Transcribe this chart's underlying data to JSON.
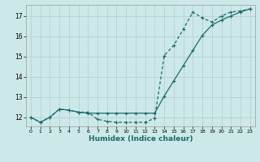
{
  "xlabel": "Humidex (Indice chaleur)",
  "ylabel": "",
  "background_color": "#cde8e8",
  "grid_color": "#b8d4d4",
  "line_color": "#1a6b6b",
  "xlim": [
    -0.5,
    23.5
  ],
  "ylim": [
    11.55,
    17.55
  ],
  "yticks": [
    12,
    13,
    14,
    15,
    16,
    17
  ],
  "xticks": [
    0,
    1,
    2,
    3,
    4,
    5,
    6,
    7,
    8,
    9,
    10,
    11,
    12,
    13,
    14,
    15,
    16,
    17,
    18,
    19,
    20,
    21,
    22,
    23
  ],
  "line1_x": [
    0,
    1,
    2,
    3,
    4,
    5,
    6,
    7,
    8,
    9,
    10,
    11,
    12,
    13,
    14,
    15,
    16,
    17,
    18,
    19,
    20,
    21,
    22,
    23
  ],
  "line1_y": [
    12.0,
    11.75,
    12.0,
    12.4,
    12.35,
    12.25,
    12.2,
    12.2,
    12.2,
    12.2,
    12.2,
    12.2,
    12.2,
    12.2,
    13.05,
    13.8,
    14.55,
    15.3,
    16.05,
    16.55,
    16.8,
    17.0,
    17.2,
    17.35
  ],
  "line2_x": [
    0,
    1,
    2,
    3,
    4,
    5,
    6,
    7,
    8,
    9,
    10,
    11,
    12,
    13,
    14,
    15,
    16,
    17,
    18,
    19,
    20,
    21,
    22,
    23
  ],
  "line2_y": [
    12.0,
    11.75,
    12.0,
    12.4,
    12.35,
    12.25,
    12.25,
    11.9,
    11.8,
    11.75,
    11.75,
    11.75,
    11.75,
    11.95,
    15.05,
    15.55,
    16.35,
    17.2,
    16.9,
    16.7,
    17.0,
    17.2,
    17.25,
    17.35
  ]
}
